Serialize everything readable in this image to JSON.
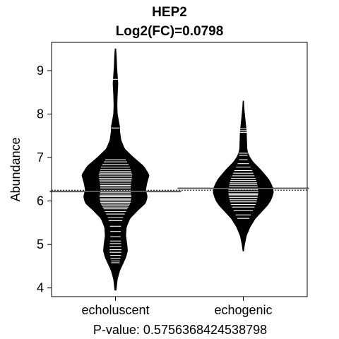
{
  "chart_data": {
    "type": "beanplot",
    "title": "HEP2",
    "subtitle": "Log2(FC)=0.0798",
    "xlabel": "P-value: 0.5756368424538798",
    "ylabel": "Abundance",
    "ylim": [
      3.8,
      9.65
    ],
    "yticks": [
      4,
      5,
      6,
      7,
      8,
      9
    ],
    "categories": [
      "echoluscent",
      "echogenic"
    ],
    "overall_mean": 6.25,
    "grid": false,
    "legend": "none",
    "colors": {
      "bean": "#000000",
      "line": "#ffffff",
      "background": "#ffffff",
      "axis": "#000000"
    },
    "series": [
      {
        "category": "echoluscent",
        "mean": 6.22,
        "density": [
          [
            3.95,
            0.01
          ],
          [
            4.2,
            0.03
          ],
          [
            4.4,
            0.07
          ],
          [
            4.55,
            0.12
          ],
          [
            4.7,
            0.17
          ],
          [
            4.85,
            0.2
          ],
          [
            5.0,
            0.19
          ],
          [
            5.2,
            0.17
          ],
          [
            5.4,
            0.18
          ],
          [
            5.6,
            0.24
          ],
          [
            5.8,
            0.38
          ],
          [
            5.95,
            0.5
          ],
          [
            6.1,
            0.53
          ],
          [
            6.25,
            0.5
          ],
          [
            6.4,
            0.52
          ],
          [
            6.6,
            0.56
          ],
          [
            6.8,
            0.47
          ],
          [
            7.0,
            0.3
          ],
          [
            7.2,
            0.15
          ],
          [
            7.4,
            0.09
          ],
          [
            7.6,
            0.07
          ],
          [
            7.7,
            0.07
          ],
          [
            7.85,
            0.05
          ],
          [
            8.0,
            0.03
          ],
          [
            8.2,
            0.025
          ],
          [
            8.45,
            0.03
          ],
          [
            8.7,
            0.04
          ],
          [
            8.9,
            0.03
          ],
          [
            9.1,
            0.02
          ],
          [
            9.3,
            0.015
          ],
          [
            9.5,
            0.005
          ]
        ],
        "points": [
          4.58,
          4.62,
          4.68,
          4.75,
          4.82,
          4.88,
          4.95,
          5.02,
          5.08,
          5.18,
          5.3,
          5.42,
          5.55,
          5.62,
          5.7,
          5.76,
          5.82,
          5.86,
          5.9,
          5.93,
          5.97,
          6.0,
          6.03,
          6.06,
          6.1,
          6.13,
          6.16,
          6.2,
          6.24,
          6.28,
          6.32,
          6.36,
          6.4,
          6.44,
          6.48,
          6.52,
          6.56,
          6.6,
          6.64,
          6.68,
          6.72,
          6.78,
          6.84,
          6.9,
          6.95,
          7.68,
          8.8
        ]
      },
      {
        "category": "echogenic",
        "mean": 6.29,
        "density": [
          [
            4.85,
            0.005
          ],
          [
            5.0,
            0.02
          ],
          [
            5.2,
            0.05
          ],
          [
            5.4,
            0.11
          ],
          [
            5.6,
            0.2
          ],
          [
            5.75,
            0.3
          ],
          [
            5.9,
            0.4
          ],
          [
            6.0,
            0.45
          ],
          [
            6.1,
            0.48
          ],
          [
            6.2,
            0.5
          ],
          [
            6.3,
            0.49
          ],
          [
            6.4,
            0.46
          ],
          [
            6.5,
            0.42
          ],
          [
            6.6,
            0.36
          ],
          [
            6.7,
            0.3
          ],
          [
            6.8,
            0.23
          ],
          [
            6.9,
            0.16
          ],
          [
            7.0,
            0.11
          ],
          [
            7.1,
            0.075
          ],
          [
            7.2,
            0.06
          ],
          [
            7.4,
            0.055
          ],
          [
            7.6,
            0.05
          ],
          [
            7.8,
            0.035
          ],
          [
            8.0,
            0.02
          ],
          [
            8.15,
            0.01
          ],
          [
            8.3,
            0.004
          ]
        ],
        "points": [
          5.6,
          5.68,
          5.78,
          5.86,
          5.92,
          5.98,
          6.03,
          6.08,
          6.12,
          6.15,
          6.18,
          6.22,
          6.26,
          6.3,
          6.34,
          6.38,
          6.42,
          6.47,
          6.52,
          6.58,
          6.64,
          6.7,
          6.78,
          6.86,
          6.95,
          7.05,
          7.1,
          7.58,
          7.62,
          7.66
        ]
      }
    ]
  }
}
